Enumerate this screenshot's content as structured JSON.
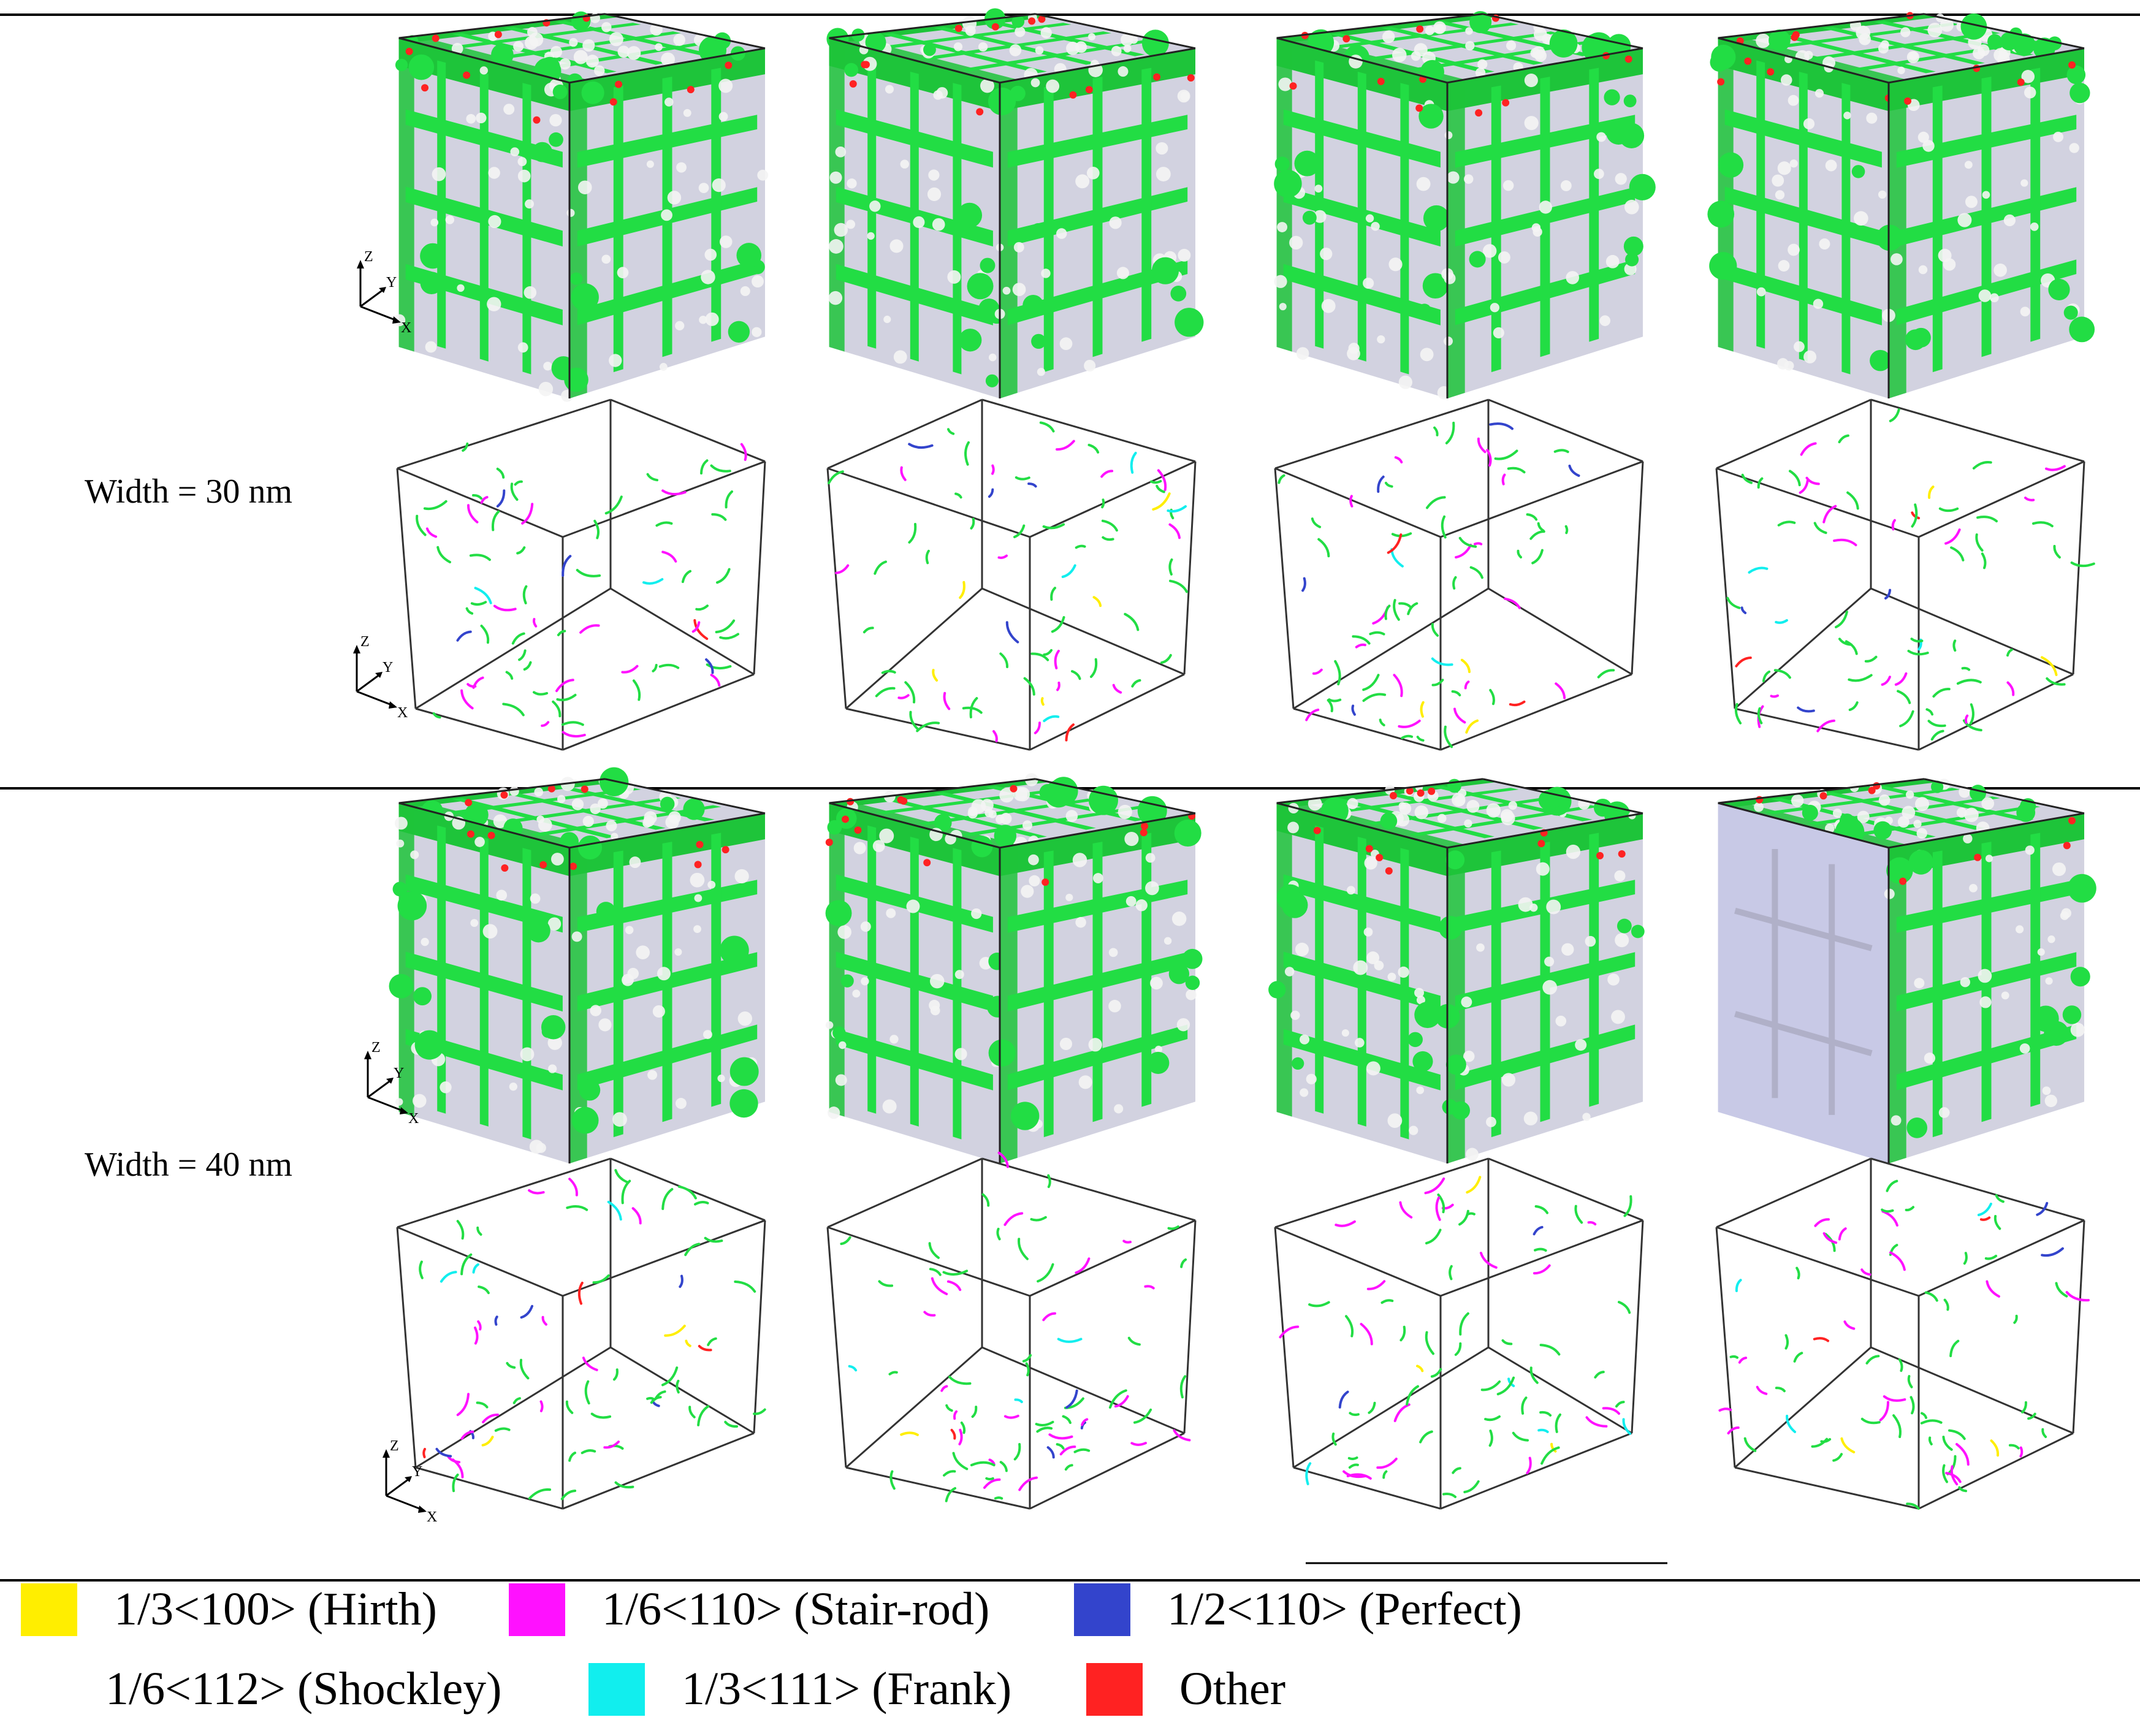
{
  "figure": {
    "rows": [
      {
        "label": "Width = 30 nm"
      },
      {
        "label": "Width = 40 nm"
      }
    ],
    "axis_labels": {
      "x": "X",
      "y": "Y",
      "z": "Z"
    },
    "colors": {
      "green_phase": "#22dd44",
      "atom_face": "#d2d2e0",
      "edge": "#222222",
      "hcp_green": "#1ec43a"
    }
  },
  "legend": {
    "items": [
      {
        "label": "1/3<100> (Hirth)",
        "color": "#ffee00"
      },
      {
        "label": "1/6<110> (Stair-rod)",
        "color": "#ff11ff"
      },
      {
        "label": "1/2<110> (Perfect)",
        "color": "#3344cc"
      },
      {
        "label": "1/6<112> (Shockley)",
        "color": "#22dd44"
      },
      {
        "label": "1/3<111> (Frank)",
        "color": "#11eeee"
      },
      {
        "label": "Other",
        "color": "#ff2222"
      }
    ]
  }
}
